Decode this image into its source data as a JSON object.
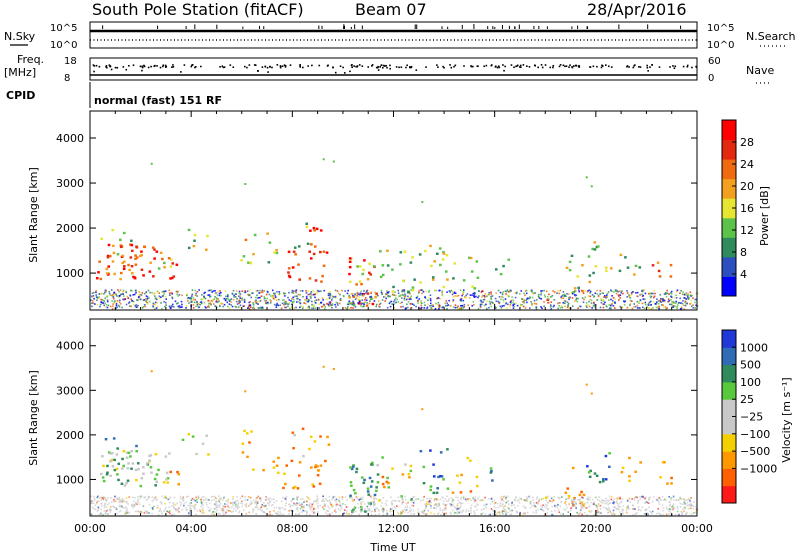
{
  "header": {
    "station": "South Pole Station (fitACF)",
    "beam": "Beam 07",
    "date": "28/Apr/2016"
  },
  "strips": {
    "nsky_label": "N.Sky",
    "nsearch_label": "N.Search",
    "nsky_range": [
      "10^0",
      "10^5"
    ],
    "nsearch_range": [
      "10^0",
      "10^5"
    ],
    "freq_label_line1": "Freq.",
    "freq_label_line2": "[MHz]",
    "freq_range": [
      "8",
      "18"
    ],
    "nave_label": "Nave",
    "nave_range": [
      "0",
      "60"
    ],
    "cpid_label": "CPID",
    "cpid_value": "normal (fast) 151 RF"
  },
  "colors": {
    "power": [
      "#0000ff",
      "#2b4fc0",
      "#2f8a5c",
      "#5cc24a",
      "#e6e632",
      "#f3a020",
      "#f06a10",
      "#e32a10",
      "#ff0000"
    ],
    "velocity": [
      "#ff1a1a",
      "#ff6000",
      "#ff9800",
      "#f5d000",
      "#c8c8c8",
      "#c8c8c8",
      "#58c83c",
      "#2f8a5c",
      "#2f6cb4",
      "#2038d8"
    ]
  },
  "chart_data": [
    {
      "type": "heatmap",
      "name": "power",
      "ylabel": "Slant Range [km]",
      "xlabel": "",
      "ylim": [
        180,
        4600
      ],
      "xlim": [
        0,
        24
      ],
      "yticks": [
        "1000",
        "2000",
        "3000",
        "4000"
      ],
      "ytick_values": [
        1000,
        2000,
        3000,
        4000
      ],
      "colorbar_label": "Power [dB]",
      "colorbar_ticks": [
        "4",
        "8",
        "12",
        "16",
        "20",
        "24",
        "28"
      ],
      "colorbar_range": [
        0,
        32
      ]
    },
    {
      "type": "heatmap",
      "name": "velocity",
      "ylabel": "Slant Range [km]",
      "xlabel": "Time UT",
      "ylim": [
        180,
        4600
      ],
      "xlim": [
        0,
        24
      ],
      "xticks": [
        "00:00",
        "04:00",
        "08:00",
        "12:00",
        "16:00",
        "20:00",
        "00:00"
      ],
      "xtick_values": [
        0,
        4,
        8,
        12,
        16,
        20,
        24
      ],
      "yticks": [
        "1000",
        "2000",
        "3000",
        "4000"
      ],
      "ytick_values": [
        1000,
        2000,
        3000,
        4000
      ],
      "colorbar_label": "Velocity [m s⁻¹]",
      "colorbar_ticks": [
        "1000",
        "500",
        "100",
        "25",
        "−25",
        "−100",
        "−500",
        "−1000"
      ]
    }
  ]
}
